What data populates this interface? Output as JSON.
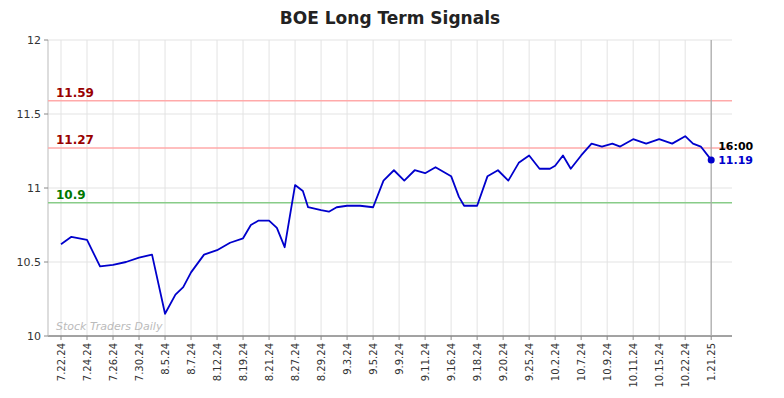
{
  "chart_data": {
    "type": "line",
    "title": "BOE Long Term Signals",
    "color": "#0000cc",
    "grid": true,
    "xlim": [
      -0.5,
      25.8
    ],
    "xticks": [
      {
        "value": 0,
        "label": "7.22.24"
      },
      {
        "value": 1,
        "label": "7.24.24"
      },
      {
        "value": 2,
        "label": "7.26.24"
      },
      {
        "value": 3,
        "label": "7.30.24"
      },
      {
        "value": 4,
        "label": "8.5.24"
      },
      {
        "value": 5,
        "label": "8.7.24"
      },
      {
        "value": 6,
        "label": "8.12.24"
      },
      {
        "value": 7,
        "label": "8.19.24"
      },
      {
        "value": 8,
        "label": "8.21.24"
      },
      {
        "value": 9,
        "label": "8.27.24"
      },
      {
        "value": 10,
        "label": "8.29.24"
      },
      {
        "value": 11,
        "label": "9.3.24"
      },
      {
        "value": 12,
        "label": "9.5.24"
      },
      {
        "value": 13,
        "label": "9.9.24"
      },
      {
        "value": 14,
        "label": "9.11.24"
      },
      {
        "value": 15,
        "label": "9.16.24"
      },
      {
        "value": 16,
        "label": "9.18.24"
      },
      {
        "value": 17,
        "label": "9.20.24"
      },
      {
        "value": 18,
        "label": "9.25.24"
      },
      {
        "value": 19,
        "label": "10.2.24"
      },
      {
        "value": 20,
        "label": "10.7.24"
      },
      {
        "value": 21,
        "label": "10.9.24"
      },
      {
        "value": 22,
        "label": "10.11.24"
      },
      {
        "value": 23,
        "label": "10.15.24"
      },
      {
        "value": 24,
        "label": "10.22.24"
      },
      {
        "value": 25,
        "label": "1.21.25"
      }
    ],
    "ylim": [
      10.0,
      12.0
    ],
    "yticks": [
      10,
      10.5,
      11,
      11.5,
      12
    ],
    "x": [
      0.0,
      0.4,
      1.0,
      1.5,
      2.0,
      2.5,
      3.0,
      3.5,
      4.0,
      4.4,
      4.7,
      5.0,
      5.5,
      6.0,
      6.5,
      7.0,
      7.3,
      7.6,
      8.0,
      8.3,
      8.6,
      9.0,
      9.3,
      9.5,
      10.0,
      10.3,
      10.6,
      11.0,
      11.5,
      12.0,
      12.4,
      12.8,
      13.2,
      13.6,
      14.0,
      14.4,
      14.8,
      15.0,
      15.3,
      15.5,
      15.8,
      16.0,
      16.4,
      16.8,
      17.2,
      17.6,
      18.0,
      18.4,
      18.8,
      19.0,
      19.3,
      19.6,
      20.0,
      20.4,
      20.8,
      21.2,
      21.5,
      22.0,
      22.5,
      23.0,
      23.5,
      24.0,
      24.3,
      24.6,
      25.0
    ],
    "values": [
      10.62,
      10.67,
      10.65,
      10.47,
      10.48,
      10.5,
      10.53,
      10.55,
      10.15,
      10.28,
      10.33,
      10.43,
      10.55,
      10.58,
      10.63,
      10.66,
      10.75,
      10.78,
      10.78,
      10.73,
      10.6,
      11.02,
      10.98,
      10.87,
      10.85,
      10.84,
      10.87,
      10.88,
      10.88,
      10.87,
      11.05,
      11.12,
      11.05,
      11.12,
      11.1,
      11.14,
      11.1,
      11.08,
      10.94,
      10.88,
      10.88,
      10.88,
      11.08,
      11.12,
      11.05,
      11.17,
      11.22,
      11.13,
      11.13,
      11.15,
      11.22,
      11.13,
      11.22,
      11.3,
      11.28,
      11.3,
      11.28,
      11.33,
      11.3,
      11.33,
      11.3,
      11.35,
      11.3,
      11.28,
      11.19
    ],
    "annotations": [
      {
        "y": 11.59,
        "label": "11.59",
        "color": "#ffaaaa",
        "label_color": "#990000"
      },
      {
        "y": 11.27,
        "label": "11.27",
        "color": "#ffaaaa",
        "label_color": "#990000"
      },
      {
        "y": 10.9,
        "label": "10.9",
        "color": "#88cc88",
        "label_color": "#007700"
      }
    ],
    "endpoint": {
      "x": 25.0,
      "y": 11.19,
      "time_label": "16:00",
      "value_label": "11.19",
      "line_color": "#aaaaaa"
    },
    "watermark": "Stock Traders Daily",
    "watermark_color": "#bbbbbb"
  }
}
